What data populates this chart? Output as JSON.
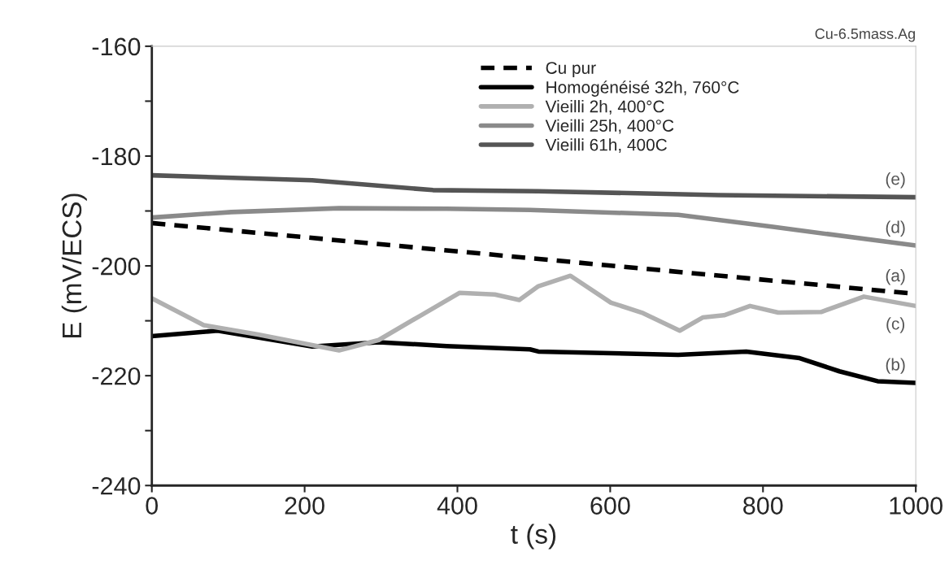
{
  "chart_data": {
    "type": "line",
    "subtitle": "Cu-6.5mass.Ag",
    "xlabel": "t (s)",
    "ylabel": "E (mV/ECS)",
    "xlim": [
      0,
      1000
    ],
    "xticks": [
      0,
      200,
      400,
      600,
      800,
      1000
    ],
    "ylim": [
      -240,
      -160
    ],
    "yticks": [
      -240,
      {
        "value": -230,
        "label": null
      },
      -220,
      {
        "value": -210,
        "label": null
      },
      -200,
      {
        "value": -190,
        "label": null
      },
      -180,
      {
        "value": -170,
        "label": null
      },
      -160
    ],
    "grid": false,
    "legend": "top",
    "marker": "none",
    "series": [
      {
        "name": "Cu pur",
        "color": "#000000",
        "line_style": "dashed",
        "x": [
          0,
          1000
        ],
        "values": [
          -192.2,
          -205.1
        ]
      },
      {
        "name": "Homogénéisé 32h, 760°C",
        "color": "#000000",
        "x": [
          0,
          86,
          210,
          297,
          386,
          495,
          506,
          689,
          778,
          848,
          900,
          950,
          1000
        ],
        "values": [
          -212.8,
          -211.8,
          -214.7,
          -213.9,
          -214.6,
          -215.2,
          -215.6,
          -216.2,
          -215.6,
          -216.8,
          -219.2,
          -221.0,
          -221.3
        ]
      },
      {
        "name": "Vieilli 2h, 400°C",
        "color": "#b0b0b0",
        "x": [
          0,
          68,
          139,
          245,
          297,
          351,
          403,
          449,
          481,
          506,
          548,
          601,
          643,
          691,
          721,
          749,
          783,
          820,
          876,
          932,
          1000
        ],
        "values": [
          -205.9,
          -210.8,
          -212.5,
          -215.4,
          -213.5,
          -209.1,
          -204.9,
          -205.2,
          -206.2,
          -203.7,
          -201.8,
          -206.7,
          -208.6,
          -211.8,
          -209.4,
          -209.0,
          -207.3,
          -208.5,
          -208.4,
          -205.6,
          -207.3
        ]
      },
      {
        "name": "Vieilli 25h, 400°C",
        "color": "#8a8a8a",
        "x": [
          0,
          104,
          245,
          386,
          495,
          689,
          813,
          1000
        ],
        "values": [
          -191.2,
          -190.2,
          -189.5,
          -189.6,
          -189.8,
          -190.7,
          -192.9,
          -196.3
        ]
      },
      {
        "name": "Vieilli 61h, 400C",
        "color": "#555555",
        "x": [
          0,
          210,
          368,
          506,
          742,
          1000
        ],
        "values": [
          -183.5,
          -184.4,
          -186.2,
          -186.4,
          -187.1,
          -187.5
        ]
      }
    ],
    "annotations": [
      "(a)",
      "(b)",
      "(c)",
      "(d)",
      "(e)"
    ]
  }
}
